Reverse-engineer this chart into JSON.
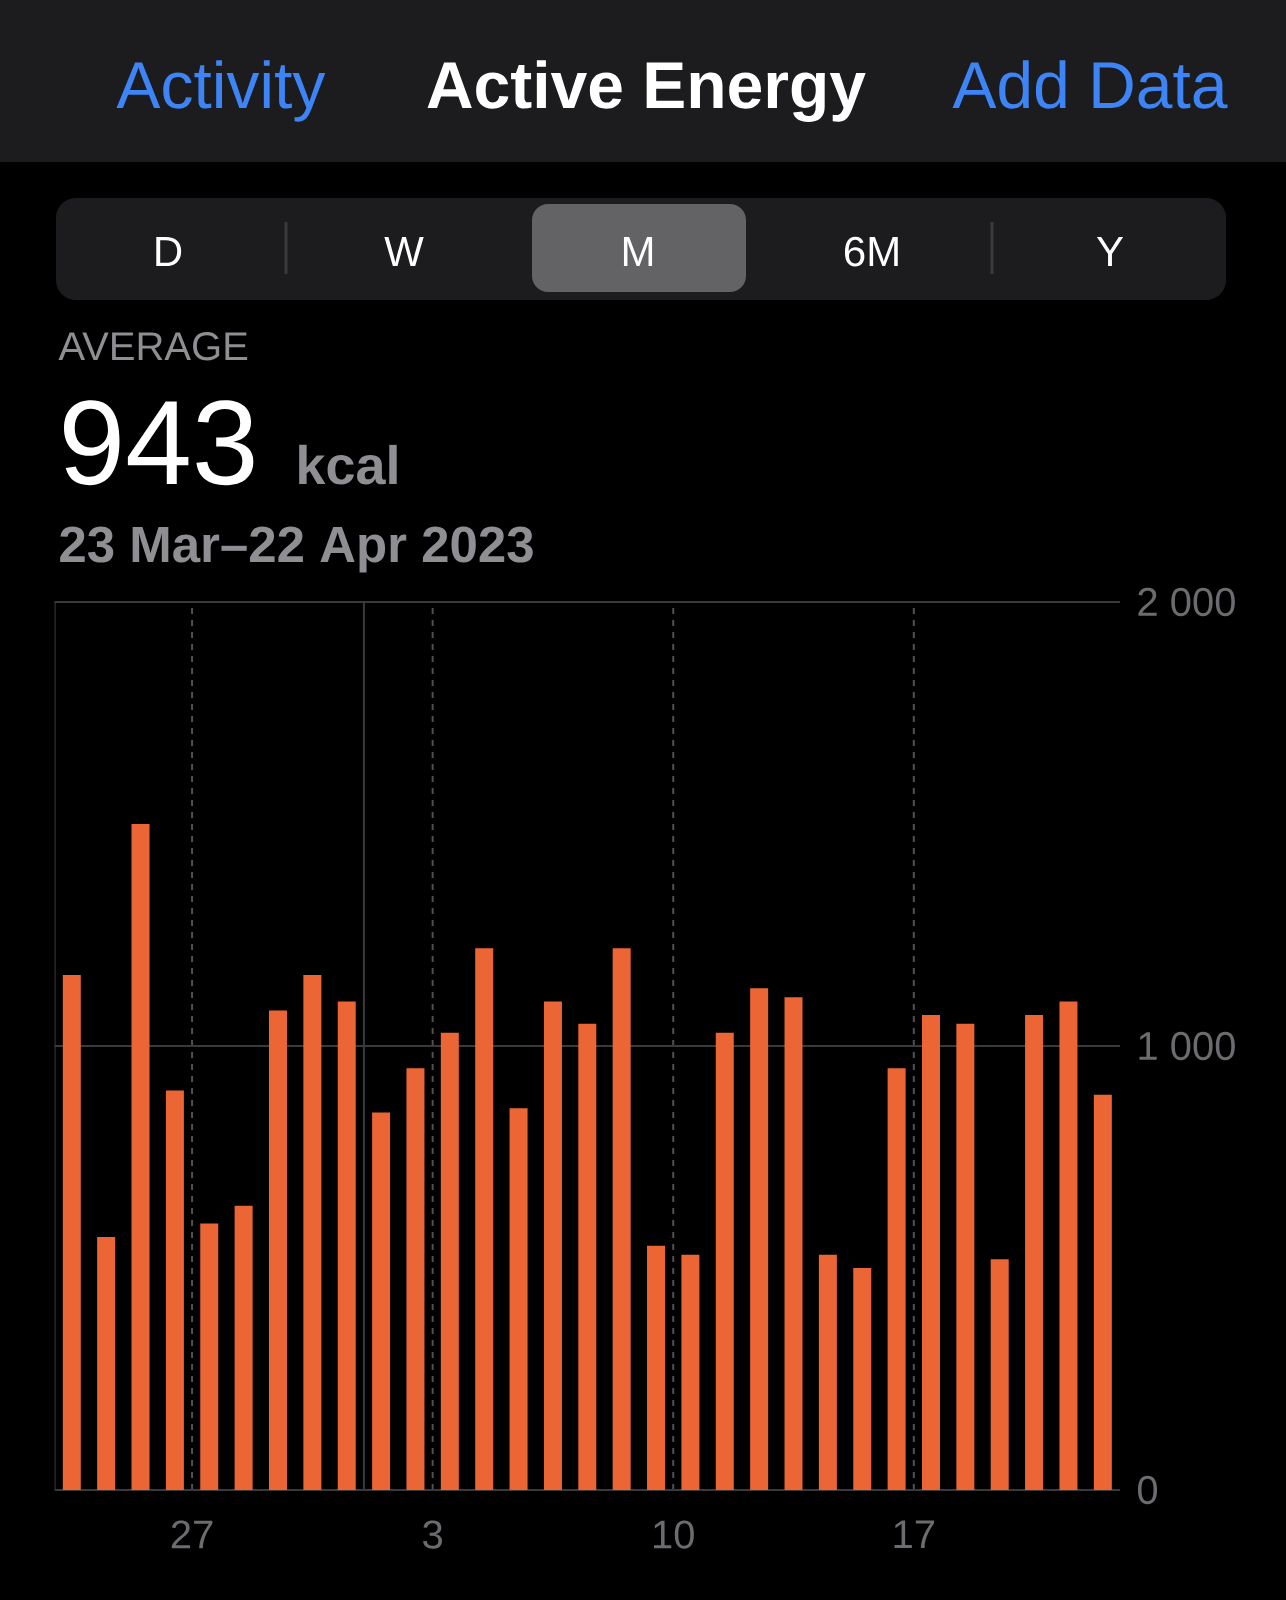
{
  "chart_data": {
    "type": "bar",
    "title": "Active Energy",
    "annotations": [
      "Activity",
      "Add Data",
      "D",
      "W",
      "M",
      "6M",
      "Y",
      "AVERAGE",
      "943",
      "kcal",
      "23 Mar–22 Apr 2023"
    ],
    "x": [
      "2023-03-23T12:00",
      "2023-03-24T12:00",
      "2023-03-25T12:00",
      "2023-03-26T12:00",
      "2023-03-27T12:00",
      "2023-03-28T12:00",
      "2023-03-29T12:00",
      "2023-03-30T12:00",
      "2023-03-31T12:00",
      "2023-04-01T12:00",
      "2023-04-02T12:00",
      "2023-04-03T12:00",
      "2023-04-04T12:00",
      "2023-04-05T12:00",
      "2023-04-06T12:00",
      "2023-04-07T12:00",
      "2023-04-08T12:00",
      "2023-04-09T12:00",
      "2023-04-10T12:00",
      "2023-04-11T12:00",
      "2023-04-12T12:00",
      "2023-04-13T12:00",
      "2023-04-14T12:00",
      "2023-04-15T12:00",
      "2023-04-16T12:00",
      "2023-04-17T12:00",
      "2023-04-18T12:00",
      "2023-04-19T12:00",
      "2023-04-20T12:00",
      "2023-04-21T12:00",
      "2023-04-22T12:00"
    ],
    "values": [
      1160,
      570,
      1500,
      900,
      600,
      640,
      1080,
      1160,
      1100,
      850,
      950,
      1030,
      1220,
      860,
      1100,
      1050,
      1220,
      550,
      530,
      1030,
      1130,
      1110,
      530,
      500,
      950,
      1070,
      1050,
      520,
      1070,
      1100,
      890
    ],
    "color": "#ec6635",
    "xlim": [
      "2023-03-23",
      "2023-04-23"
    ],
    "xticks": [
      {
        "value": "2023-03-27",
        "label": "27"
      },
      {
        "value": "2023-04-01",
        "label": null
      },
      {
        "value": "2023-04-03",
        "label": "3"
      },
      {
        "value": "2023-04-10",
        "label": "10"
      },
      {
        "value": "2023-04-17",
        "label": "17"
      }
    ],
    "ylim": [
      0,
      2000
    ],
    "yticks": [
      {
        "value": 2000,
        "label": "2 000"
      },
      {
        "value": 1000,
        "label": "1 000"
      },
      0
    ],
    "grid": true
  }
}
